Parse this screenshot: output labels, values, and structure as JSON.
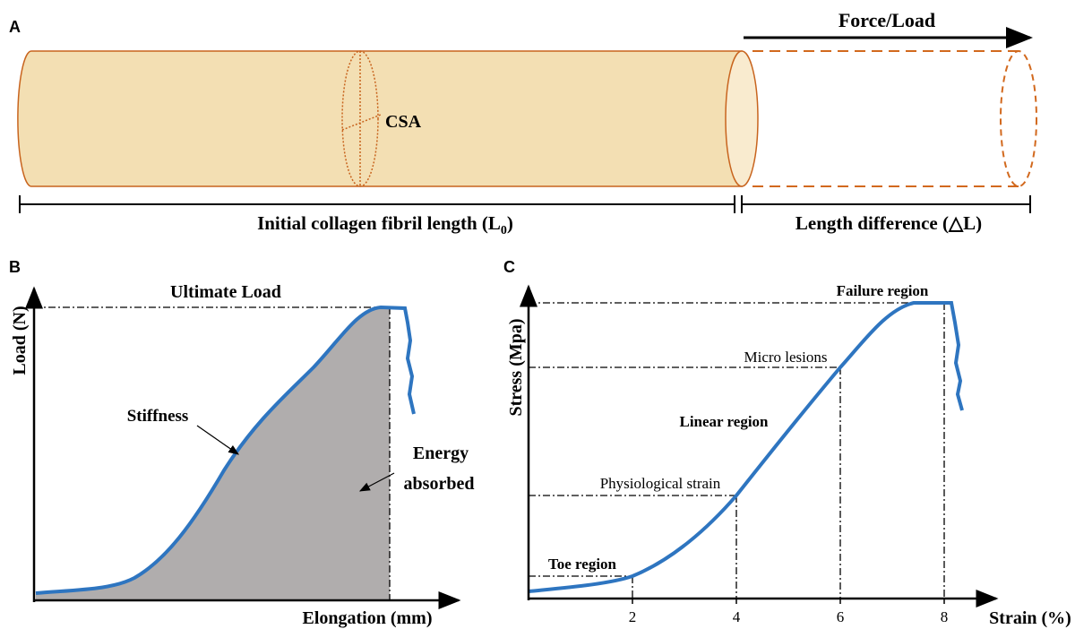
{
  "panel_a": {
    "label": "A",
    "force": "Force/Load",
    "csa": "CSA",
    "initial_length": "Initial collagen fibril length (L",
    "initial_length_sub": "0",
    "initial_length_end": ")",
    "length_difference": "Length difference (△L)"
  },
  "panel_b": {
    "label": "B",
    "y_label": "Load (N)",
    "x_label": "Elongation (mm)",
    "ultimate": "Ultimate Load",
    "stiffness": "Stiffness",
    "energy_line1": "Energy",
    "energy_line2": "absorbed"
  },
  "panel_c": {
    "label": "C",
    "y_label": "Stress (Mpa)",
    "x_label": "Strain (%)",
    "xticks": [
      2,
      4,
      6,
      8
    ],
    "toe": "Toe region",
    "physiological": "Physiological strain",
    "linear": "Linear region",
    "micro": "Micro lesions",
    "failure": "Failure region"
  }
}
